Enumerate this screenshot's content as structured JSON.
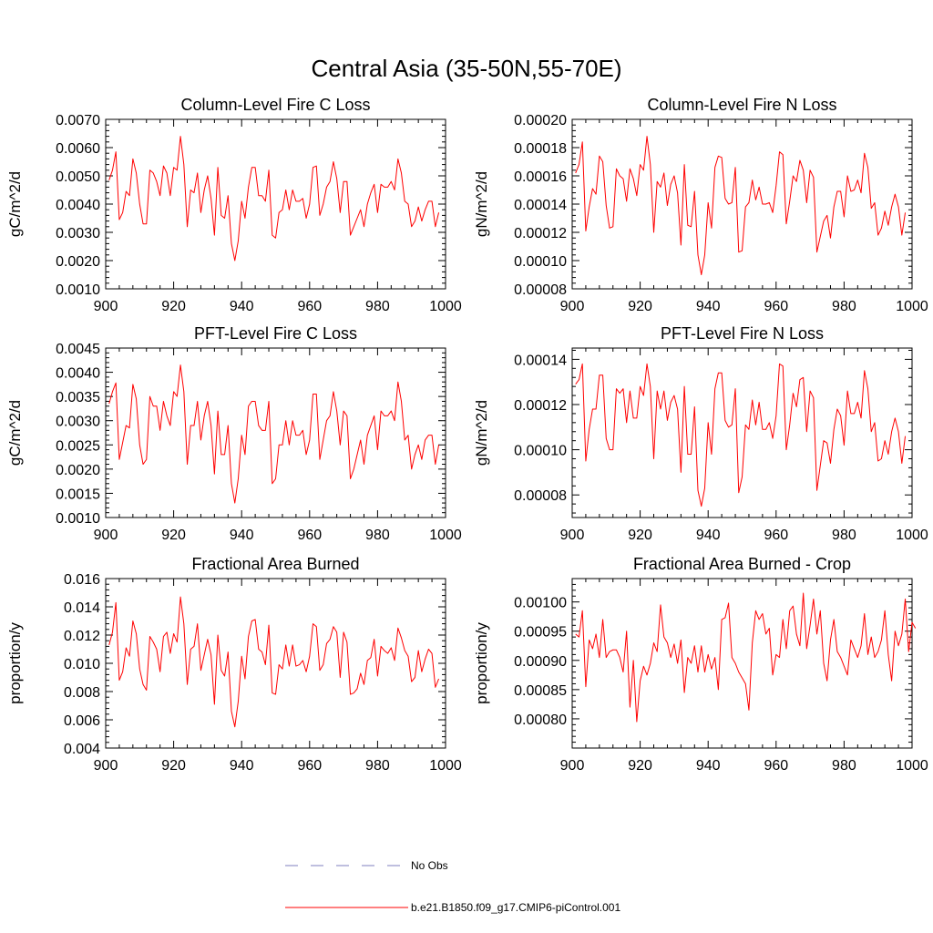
{
  "figure": {
    "title": "Central Asia (35-50N,55-70E)",
    "legend": [
      {
        "label": "No Obs",
        "color": "#7f7fbf",
        "dash": "dashed"
      },
      {
        "label": "b.e21.B1850.f09_g17.CMIP6-piControl.001",
        "color": "#ff0000",
        "dash": "solid"
      }
    ]
  },
  "chart_data": [
    {
      "type": "line",
      "title": "Column-Level Fire C Loss",
      "xlabel": "",
      "ylabel": "gC/m^2/d",
      "xlim": [
        900,
        1000
      ],
      "ylim": [
        0.001,
        0.007
      ],
      "xticks": [
        "900",
        "920",
        "940",
        "960",
        "980",
        "1000"
      ],
      "yticks": [
        "0.0010",
        "0.0020",
        "0.0030",
        "0.0040",
        "0.0050",
        "0.0060",
        "0.0070"
      ],
      "color": "#ff0000",
      "x_start": 901,
      "values": [
        0.00485,
        0.0052,
        0.00585,
        0.00345,
        0.0037,
        0.00445,
        0.0043,
        0.0056,
        0.0051,
        0.004,
        0.0033,
        0.0033,
        0.0052,
        0.0051,
        0.0048,
        0.0043,
        0.00535,
        0.0051,
        0.0043,
        0.0053,
        0.0052,
        0.0064,
        0.0054,
        0.0032,
        0.0045,
        0.0044,
        0.0051,
        0.0037,
        0.0045,
        0.005,
        0.0042,
        0.0029,
        0.0053,
        0.0036,
        0.0035,
        0.0043,
        0.0026,
        0.002,
        0.0027,
        0.0041,
        0.0035,
        0.0046,
        0.0053,
        0.0053,
        0.0043,
        0.0043,
        0.0041,
        0.0052,
        0.0029,
        0.0028,
        0.0037,
        0.0038,
        0.0045,
        0.0038,
        0.0045,
        0.0041,
        0.0041,
        0.0042,
        0.0035,
        0.004,
        0.0053,
        0.00535,
        0.0036,
        0.004,
        0.0046,
        0.0048,
        0.0055,
        0.0049,
        0.0037,
        0.0048,
        0.0048,
        0.0029,
        0.0032,
        0.0035,
        0.0038,
        0.0032,
        0.004,
        0.0044,
        0.0047,
        0.0037,
        0.0047,
        0.0046,
        0.0046,
        0.0048,
        0.0045,
        0.0056,
        0.0051,
        0.0041,
        0.004,
        0.0032,
        0.0034,
        0.0039,
        0.0034,
        0.0038,
        0.0041,
        0.0041,
        0.0032,
        0.0037
      ]
    },
    {
      "type": "line",
      "title": "Column-Level Fire N Loss",
      "xlabel": "",
      "ylabel": "gN/m^2/d",
      "xlim": [
        900,
        1000
      ],
      "ylim": [
        8e-05,
        0.0002
      ],
      "xticks": [
        "900",
        "920",
        "940",
        "960",
        "980",
        "1000"
      ],
      "yticks": [
        "0.00008",
        "0.00010",
        "0.00012",
        "0.00014",
        "0.00016",
        "0.00018",
        "0.00020"
      ],
      "color": "#ff0000",
      "x_start": 901,
      "values": [
        0.000162,
        0.000168,
        0.000184,
        0.000121,
        0.000138,
        0.000151,
        0.000147,
        0.000174,
        0.00017,
        0.000139,
        0.000123,
        0.000124,
        0.000165,
        0.00016,
        0.000158,
        0.000142,
        0.000165,
        0.000158,
        0.000146,
        0.000168,
        0.000164,
        0.000188,
        0.000168,
        0.00012,
        0.000156,
        0.000152,
        0.000162,
        0.000139,
        0.000154,
        0.00016,
        0.000148,
        0.000111,
        0.000168,
        0.000125,
        0.000124,
        0.000149,
        0.000104,
        9e-05,
        0.000104,
        0.000141,
        0.000123,
        0.000166,
        0.000174,
        0.000173,
        0.000144,
        0.00014,
        0.000141,
        0.000166,
        0.000106,
        0.000107,
        0.000138,
        0.000141,
        0.000157,
        0.000143,
        0.000152,
        0.00014,
        0.00014,
        0.000141,
        0.000134,
        0.000153,
        0.000177,
        0.000175,
        0.000126,
        0.000142,
        0.00016,
        0.000156,
        0.000171,
        0.000164,
        0.000141,
        0.000164,
        0.000159,
        0.000106,
        0.000117,
        0.000128,
        0.000132,
        0.000116,
        0.000138,
        0.000149,
        0.000149,
        0.000131,
        0.00016,
        0.000149,
        0.00015,
        0.000157,
        0.000148,
        0.000176,
        0.000166,
        0.000137,
        0.000141,
        0.000118,
        0.000123,
        0.000135,
        0.000125,
        0.000138,
        0.000147,
        0.000138,
        0.000118,
        0.000134
      ]
    },
    {
      "type": "line",
      "title": "PFT-Level Fire C Loss",
      "xlabel": "",
      "ylabel": "gC/m^2/d",
      "xlim": [
        900,
        1000
      ],
      "ylim": [
        0.001,
        0.0045
      ],
      "xticks": [
        "900",
        "920",
        "940",
        "960",
        "980",
        "1000"
      ],
      "yticks": [
        "0.0010",
        "0.0015",
        "0.0020",
        "0.0025",
        "0.0030",
        "0.0035",
        "0.0040",
        "0.0045"
      ],
      "color": "#ff0000",
      "x_start": 901,
      "values": [
        0.00335,
        0.0036,
        0.00378,
        0.0022,
        0.00255,
        0.0029,
        0.00285,
        0.00375,
        0.00345,
        0.0025,
        0.0021,
        0.0022,
        0.0035,
        0.0033,
        0.0033,
        0.0028,
        0.0034,
        0.0031,
        0.0029,
        0.0036,
        0.0035,
        0.00415,
        0.0036,
        0.0021,
        0.0029,
        0.0029,
        0.0034,
        0.0026,
        0.0031,
        0.0034,
        0.0029,
        0.0019,
        0.0032,
        0.0023,
        0.0023,
        0.0029,
        0.0017,
        0.0013,
        0.0018,
        0.0027,
        0.0023,
        0.0033,
        0.0034,
        0.0034,
        0.0029,
        0.0028,
        0.0028,
        0.0034,
        0.0017,
        0.0018,
        0.0025,
        0.0025,
        0.003,
        0.0025,
        0.003,
        0.0027,
        0.0027,
        0.0028,
        0.0023,
        0.0026,
        0.00355,
        0.00355,
        0.0022,
        0.0026,
        0.003,
        0.0031,
        0.0036,
        0.0032,
        0.0025,
        0.0032,
        0.0031,
        0.0018,
        0.002,
        0.0023,
        0.0026,
        0.0021,
        0.0027,
        0.0029,
        0.0031,
        0.0024,
        0.0032,
        0.0031,
        0.0031,
        0.0032,
        0.003,
        0.0038,
        0.0034,
        0.0026,
        0.0027,
        0.002,
        0.0023,
        0.0025,
        0.0022,
        0.0026,
        0.0027,
        0.0027,
        0.0021,
        0.0025
      ]
    },
    {
      "type": "line",
      "title": "PFT-Level Fire N Loss",
      "xlabel": "",
      "ylabel": "gN/m^2/d",
      "xlim": [
        900,
        1000
      ],
      "ylim": [
        7e-05,
        0.000145
      ],
      "xticks": [
        "900",
        "920",
        "940",
        "960",
        "980",
        "1000"
      ],
      "yticks": [
        "0.00008",
        "0.00010",
        "0.00012",
        "0.00014"
      ],
      "color": "#ff0000",
      "x_start": 901,
      "values": [
        0.000129,
        0.000131,
        0.000138,
        9.5e-05,
        0.000109,
        0.000118,
        0.000118,
        0.000133,
        0.000133,
        0.000105,
        0.0001,
        0.0001,
        0.000127,
        0.000125,
        0.000127,
        0.000112,
        0.000126,
        0.000114,
        0.000114,
        0.000128,
        0.000124,
        0.000138,
        0.000128,
        9.6e-05,
        0.000126,
        0.000118,
        0.000126,
        0.000113,
        0.000121,
        0.000124,
        0.000118,
        9e-05,
        0.000128,
        9.8e-05,
        9.8e-05,
        0.000119,
        8.2e-05,
        7.5e-05,
        8.3e-05,
        0.000112,
        9.8e-05,
        0.000127,
        0.000134,
        0.000134,
        0.000113,
        0.00011,
        0.000111,
        0.000127,
        8.1e-05,
        8.8e-05,
        0.000111,
        0.000109,
        0.000122,
        0.000111,
        0.000121,
        0.000109,
        0.000109,
        0.000112,
        0.000105,
        0.000115,
        0.000138,
        0.000137,
        0.0001,
        0.000111,
        0.000125,
        0.000119,
        0.000131,
        0.000132,
        0.000108,
        0.000126,
        0.000123,
        8.2e-05,
        9.3e-05,
        0.000104,
        0.000103,
        9.4e-05,
        0.000109,
        0.000118,
        0.000115,
        0.000102,
        0.000126,
        0.000116,
        0.000116,
        0.000121,
        0.000114,
        0.000135,
        0.000127,
        0.000108,
        0.000112,
        9.5e-05,
        9.6e-05,
        0.000104,
        9.8e-05,
        0.000108,
        0.000114,
        0.000108,
        9.4e-05,
        0.000106
      ]
    },
    {
      "type": "line",
      "title": "Fractional Area Burned",
      "xlabel": "",
      "ylabel": "proportion/y",
      "xlim": [
        900,
        1000
      ],
      "ylim": [
        0.004,
        0.016
      ],
      "xticks": [
        "900",
        "920",
        "940",
        "960",
        "980",
        "1000"
      ],
      "yticks": [
        "0.004",
        "0.006",
        "0.008",
        "0.010",
        "0.012",
        "0.014",
        "0.016"
      ],
      "color": "#ff0000",
      "x_start": 901,
      "values": [
        0.0113,
        0.0122,
        0.0143,
        0.0088,
        0.0094,
        0.0111,
        0.0105,
        0.013,
        0.0121,
        0.0096,
        0.0085,
        0.0081,
        0.0119,
        0.0115,
        0.011,
        0.0094,
        0.0119,
        0.0122,
        0.0107,
        0.0121,
        0.0115,
        0.0147,
        0.0128,
        0.0085,
        0.011,
        0.0112,
        0.0128,
        0.0095,
        0.0106,
        0.0117,
        0.0106,
        0.0071,
        0.012,
        0.0095,
        0.0091,
        0.0108,
        0.0066,
        0.0055,
        0.0073,
        0.0105,
        0.0089,
        0.0119,
        0.013,
        0.0131,
        0.011,
        0.0108,
        0.0099,
        0.0127,
        0.0079,
        0.0078,
        0.0099,
        0.0096,
        0.0113,
        0.0098,
        0.0113,
        0.0098,
        0.0099,
        0.0102,
        0.0094,
        0.0105,
        0.0128,
        0.0126,
        0.0095,
        0.0099,
        0.0114,
        0.0117,
        0.0126,
        0.0122,
        0.009,
        0.0122,
        0.0115,
        0.0078,
        0.0079,
        0.0082,
        0.0093,
        0.0085,
        0.0102,
        0.0104,
        0.0117,
        0.0091,
        0.0112,
        0.0109,
        0.0107,
        0.0111,
        0.0102,
        0.0125,
        0.0118,
        0.0109,
        0.0105,
        0.0087,
        0.009,
        0.0109,
        0.0094,
        0.0103,
        0.011,
        0.0107,
        0.0083,
        0.0089
      ]
    },
    {
      "type": "line",
      "title": "Fractional Area Burned - Crop",
      "xlabel": "",
      "ylabel": "proportion/y",
      "xlim": [
        900,
        1000
      ],
      "ylim": [
        0.00075,
        0.00104
      ],
      "xticks": [
        "900",
        "920",
        "940",
        "960",
        "980",
        "1000"
      ],
      "yticks": [
        "0.00080",
        "0.00085",
        "0.00090",
        "0.00095",
        "0.00100"
      ],
      "color": "#ff0000",
      "x_start": 901,
      "values": [
        0.000945,
        0.00094,
        0.000985,
        0.000855,
        0.000935,
        0.00092,
        0.000945,
        0.000905,
        0.00097,
        0.000905,
        0.000915,
        0.000918,
        0.000918,
        0.000905,
        0.00088,
        0.00095,
        0.00082,
        0.0009,
        0.000795,
        0.000865,
        0.00089,
        0.000875,
        0.000895,
        0.00093,
        0.000915,
        0.000995,
        0.00094,
        0.00093,
        0.000905,
        0.000928,
        0.000895,
        0.000935,
        0.000845,
        0.000905,
        0.000895,
        0.000925,
        0.00088,
        0.000925,
        0.00088,
        0.00091,
        0.000885,
        0.000905,
        0.00085,
        0.00097,
        0.000973,
        0.000998,
        0.000905,
        0.000895,
        0.00088,
        0.00087,
        0.00086,
        0.000815,
        0.00093,
        0.000985,
        0.00097,
        0.00098,
        0.000945,
        0.000955,
        0.000875,
        0.00091,
        0.000905,
        0.00097,
        0.00092,
        0.000985,
        0.000993,
        0.000945,
        0.000925,
        0.001015,
        0.00092,
        0.00096,
        0.001005,
        0.000945,
        0.000985,
        0.000895,
        0.000865,
        0.000935,
        0.00097,
        0.000915,
        0.000905,
        0.00089,
        0.000875,
        0.000935,
        0.00092,
        0.000905,
        0.000925,
        0.00098,
        0.00091,
        0.00094,
        0.000905,
        0.000915,
        0.000935,
        0.000985,
        0.00091,
        0.000865,
        0.00095,
        0.000925,
        0.000945,
        0.001005,
        0.000915,
        0.000965,
        0.000955
      ]
    }
  ]
}
